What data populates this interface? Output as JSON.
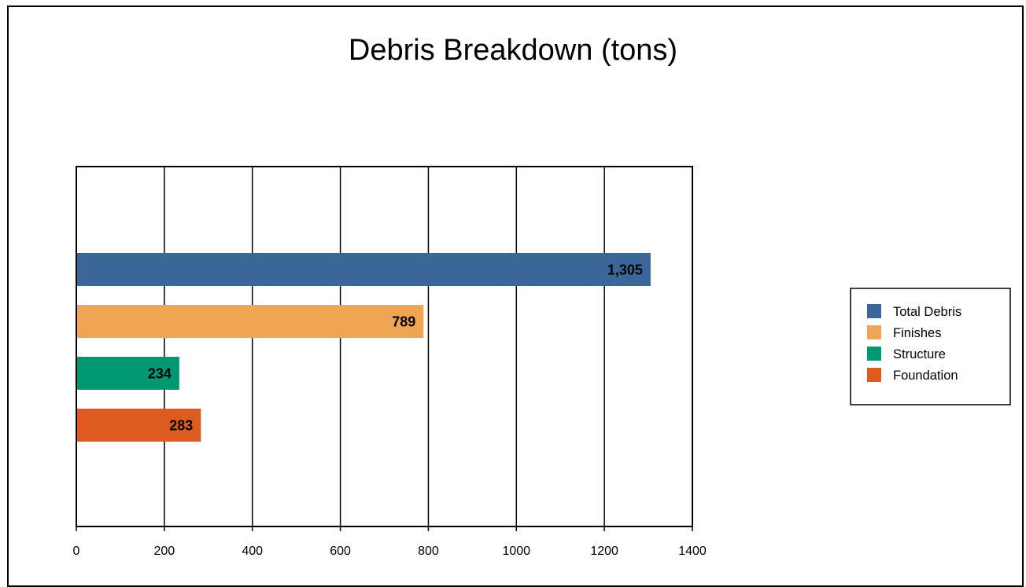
{
  "chart_data": {
    "type": "bar",
    "orientation": "horizontal",
    "title": "Debris Breakdown (tons)",
    "xlabel": "",
    "ylabel": "",
    "xlim": [
      0,
      1400
    ],
    "xticks": [
      "0",
      "200",
      "400",
      "600",
      "800",
      "1000",
      "1200",
      "1400"
    ],
    "grid": "vertical",
    "legend_position": "right",
    "series": [
      {
        "name": "Total Debris",
        "value": 1305,
        "label": "1,305",
        "color": "#3b6699"
      },
      {
        "name": "Finishes",
        "value": 789,
        "label": "789",
        "color": "#f0a555"
      },
      {
        "name": "Structure",
        "value": 234,
        "label": "234",
        "color": "#009872"
      },
      {
        "name": "Foundation",
        "value": 283,
        "label": "283",
        "color": "#dd5a20"
      }
    ]
  }
}
